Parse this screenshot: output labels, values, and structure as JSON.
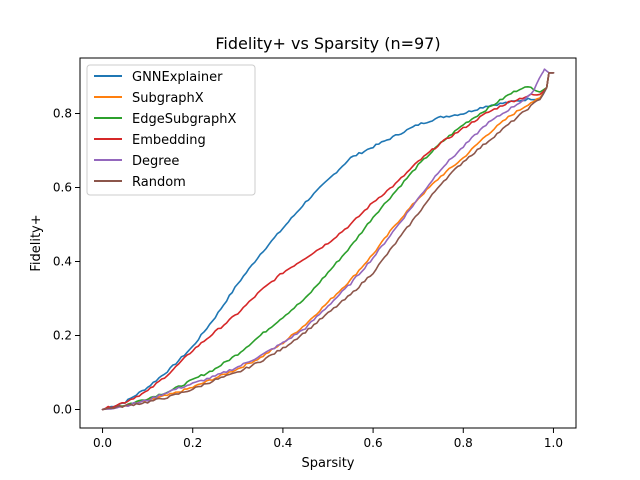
{
  "chart_data": {
    "type": "line",
    "title": "Fidelity+ vs Sparsity (n=97)",
    "xlabel": "Sparsity",
    "ylabel": "Fidelity+",
    "xlim": [
      -0.05,
      1.05
    ],
    "ylim": [
      -0.05,
      0.95
    ],
    "xticks": [
      0.0,
      0.2,
      0.4,
      0.6,
      0.8,
      1.0
    ],
    "xtick_labels": [
      "0.0",
      "0.2",
      "0.4",
      "0.6",
      "0.8",
      "1.0"
    ],
    "yticks": [
      0.0,
      0.2,
      0.4,
      0.6,
      0.8
    ],
    "ytick_labels": [
      "0.0",
      "0.2",
      "0.4",
      "0.6",
      "0.8"
    ],
    "grid": false,
    "legend_position": "upper-left",
    "series": [
      {
        "name": "GNNExplainer",
        "color": "#1f77b4",
        "points": [
          [
            0.0,
            0.0
          ],
          [
            0.05,
            0.02
          ],
          [
            0.1,
            0.06
          ],
          [
            0.15,
            0.11
          ],
          [
            0.2,
            0.17
          ],
          [
            0.25,
            0.25
          ],
          [
            0.3,
            0.34
          ],
          [
            0.35,
            0.42
          ],
          [
            0.4,
            0.49
          ],
          [
            0.45,
            0.56
          ],
          [
            0.5,
            0.62
          ],
          [
            0.55,
            0.68
          ],
          [
            0.6,
            0.71
          ],
          [
            0.65,
            0.74
          ],
          [
            0.7,
            0.77
          ],
          [
            0.75,
            0.79
          ],
          [
            0.8,
            0.8
          ],
          [
            0.85,
            0.82
          ],
          [
            0.9,
            0.83
          ],
          [
            0.95,
            0.84
          ],
          [
            0.97,
            0.84
          ],
          [
            0.985,
            0.87
          ],
          [
            0.99,
            0.91
          ],
          [
            1.0,
            0.91
          ]
        ]
      },
      {
        "name": "SubgraphX",
        "color": "#ff7f0e",
        "points": [
          [
            0.0,
            0.0
          ],
          [
            0.05,
            0.01
          ],
          [
            0.1,
            0.025
          ],
          [
            0.15,
            0.04
          ],
          [
            0.2,
            0.06
          ],
          [
            0.25,
            0.085
          ],
          [
            0.3,
            0.11
          ],
          [
            0.35,
            0.14
          ],
          [
            0.4,
            0.18
          ],
          [
            0.45,
            0.23
          ],
          [
            0.5,
            0.29
          ],
          [
            0.55,
            0.35
          ],
          [
            0.6,
            0.42
          ],
          [
            0.65,
            0.5
          ],
          [
            0.7,
            0.57
          ],
          [
            0.75,
            0.63
          ],
          [
            0.8,
            0.68
          ],
          [
            0.85,
            0.74
          ],
          [
            0.9,
            0.79
          ],
          [
            0.95,
            0.83
          ],
          [
            0.97,
            0.84
          ],
          [
            0.985,
            0.87
          ],
          [
            0.99,
            0.91
          ],
          [
            1.0,
            0.91
          ]
        ]
      },
      {
        "name": "EdgeSubgraphX",
        "color": "#2ca02c",
        "points": [
          [
            0.0,
            0.0
          ],
          [
            0.05,
            0.012
          ],
          [
            0.1,
            0.03
          ],
          [
            0.15,
            0.05
          ],
          [
            0.2,
            0.08
          ],
          [
            0.25,
            0.11
          ],
          [
            0.3,
            0.15
          ],
          [
            0.35,
            0.2
          ],
          [
            0.4,
            0.25
          ],
          [
            0.45,
            0.3
          ],
          [
            0.5,
            0.37
          ],
          [
            0.55,
            0.44
          ],
          [
            0.6,
            0.52
          ],
          [
            0.65,
            0.59
          ],
          [
            0.7,
            0.66
          ],
          [
            0.75,
            0.72
          ],
          [
            0.8,
            0.77
          ],
          [
            0.85,
            0.81
          ],
          [
            0.9,
            0.85
          ],
          [
            0.93,
            0.87
          ],
          [
            0.95,
            0.87
          ],
          [
            0.97,
            0.86
          ],
          [
            0.985,
            0.87
          ],
          [
            0.99,
            0.91
          ],
          [
            1.0,
            0.91
          ]
        ]
      },
      {
        "name": "Embedding",
        "color": "#d62728",
        "points": [
          [
            0.0,
            0.0
          ],
          [
            0.05,
            0.02
          ],
          [
            0.1,
            0.05
          ],
          [
            0.15,
            0.1
          ],
          [
            0.2,
            0.16
          ],
          [
            0.25,
            0.21
          ],
          [
            0.3,
            0.26
          ],
          [
            0.35,
            0.32
          ],
          [
            0.4,
            0.37
          ],
          [
            0.45,
            0.41
          ],
          [
            0.5,
            0.45
          ],
          [
            0.55,
            0.5
          ],
          [
            0.6,
            0.56
          ],
          [
            0.65,
            0.61
          ],
          [
            0.7,
            0.67
          ],
          [
            0.75,
            0.72
          ],
          [
            0.8,
            0.76
          ],
          [
            0.85,
            0.8
          ],
          [
            0.9,
            0.83
          ],
          [
            0.95,
            0.85
          ],
          [
            0.97,
            0.85
          ],
          [
            0.985,
            0.87
          ],
          [
            0.99,
            0.91
          ],
          [
            1.0,
            0.91
          ]
        ]
      },
      {
        "name": "Degree",
        "color": "#9467bd",
        "points": [
          [
            0.0,
            0.0
          ],
          [
            0.05,
            0.01
          ],
          [
            0.1,
            0.025
          ],
          [
            0.15,
            0.05
          ],
          [
            0.2,
            0.07
          ],
          [
            0.25,
            0.09
          ],
          [
            0.3,
            0.115
          ],
          [
            0.35,
            0.145
          ],
          [
            0.4,
            0.18
          ],
          [
            0.45,
            0.22
          ],
          [
            0.5,
            0.28
          ],
          [
            0.55,
            0.34
          ],
          [
            0.6,
            0.41
          ],
          [
            0.65,
            0.49
          ],
          [
            0.7,
            0.57
          ],
          [
            0.75,
            0.65
          ],
          [
            0.8,
            0.71
          ],
          [
            0.85,
            0.77
          ],
          [
            0.9,
            0.81
          ],
          [
            0.95,
            0.85
          ],
          [
            0.975,
            0.91
          ],
          [
            0.98,
            0.92
          ],
          [
            0.99,
            0.91
          ],
          [
            1.0,
            0.91
          ]
        ]
      },
      {
        "name": "Random",
        "color": "#8c564b",
        "points": [
          [
            0.0,
            0.0
          ],
          [
            0.05,
            0.01
          ],
          [
            0.1,
            0.02
          ],
          [
            0.15,
            0.035
          ],
          [
            0.2,
            0.055
          ],
          [
            0.25,
            0.08
          ],
          [
            0.3,
            0.1
          ],
          [
            0.35,
            0.13
          ],
          [
            0.4,
            0.165
          ],
          [
            0.45,
            0.21
          ],
          [
            0.5,
            0.26
          ],
          [
            0.55,
            0.31
          ],
          [
            0.6,
            0.37
          ],
          [
            0.65,
            0.45
          ],
          [
            0.7,
            0.53
          ],
          [
            0.75,
            0.61
          ],
          [
            0.8,
            0.67
          ],
          [
            0.85,
            0.72
          ],
          [
            0.9,
            0.77
          ],
          [
            0.95,
            0.82
          ],
          [
            0.97,
            0.84
          ],
          [
            0.985,
            0.87
          ],
          [
            0.99,
            0.91
          ],
          [
            1.0,
            0.91
          ]
        ]
      }
    ]
  }
}
